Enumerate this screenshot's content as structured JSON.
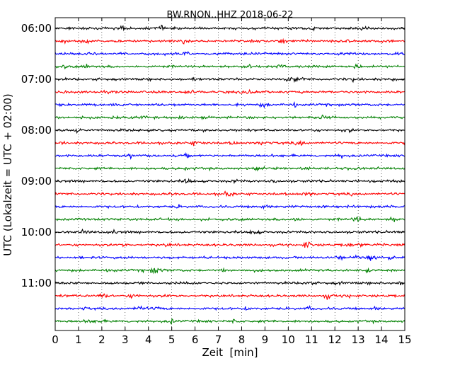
{
  "chart_data": {
    "type": "line",
    "subtype": "dayplot",
    "title": "BW.RNON..HHZ 2018-06-22",
    "xlabel": "Zeit  [min]",
    "ylabel": "UTC (Lokalzeit = UTC + 02:00)",
    "xlim": [
      0,
      15
    ],
    "x_ticks": [
      0,
      1,
      2,
      3,
      4,
      5,
      6,
      7,
      8,
      9,
      10,
      11,
      12,
      13,
      14,
      15
    ],
    "y_tick_labels": [
      "06:00",
      "07:00",
      "08:00",
      "09:00",
      "10:00",
      "11:00"
    ],
    "grid": "vertical dotted",
    "legend": "none",
    "trace_interval_min": 15,
    "color_cycle": [
      "#000000",
      "#ff0000",
      "#0000ff",
      "#008000"
    ],
    "traces": [
      {
        "start": "06:00",
        "color": "#000000"
      },
      {
        "start": "06:15",
        "color": "#ff0000"
      },
      {
        "start": "06:30",
        "color": "#0000ff"
      },
      {
        "start": "06:45",
        "color": "#008000"
      },
      {
        "start": "07:00",
        "color": "#000000"
      },
      {
        "start": "07:15",
        "color": "#ff0000"
      },
      {
        "start": "07:30",
        "color": "#0000ff"
      },
      {
        "start": "07:45",
        "color": "#008000"
      },
      {
        "start": "08:00",
        "color": "#000000"
      },
      {
        "start": "08:15",
        "color": "#ff0000"
      },
      {
        "start": "08:30",
        "color": "#0000ff"
      },
      {
        "start": "08:45",
        "color": "#008000"
      },
      {
        "start": "09:00",
        "color": "#000000"
      },
      {
        "start": "09:15",
        "color": "#ff0000"
      },
      {
        "start": "09:30",
        "color": "#0000ff"
      },
      {
        "start": "09:45",
        "color": "#008000"
      },
      {
        "start": "10:00",
        "color": "#000000"
      },
      {
        "start": "10:15",
        "color": "#ff0000"
      },
      {
        "start": "10:30",
        "color": "#0000ff"
      },
      {
        "start": "10:45",
        "color": "#008000"
      },
      {
        "start": "11:00",
        "color": "#000000"
      },
      {
        "start": "11:15",
        "color": "#ff0000"
      },
      {
        "start": "11:30",
        "color": "#0000ff"
      },
      {
        "start": "11:45",
        "color": "#008000"
      }
    ]
  }
}
